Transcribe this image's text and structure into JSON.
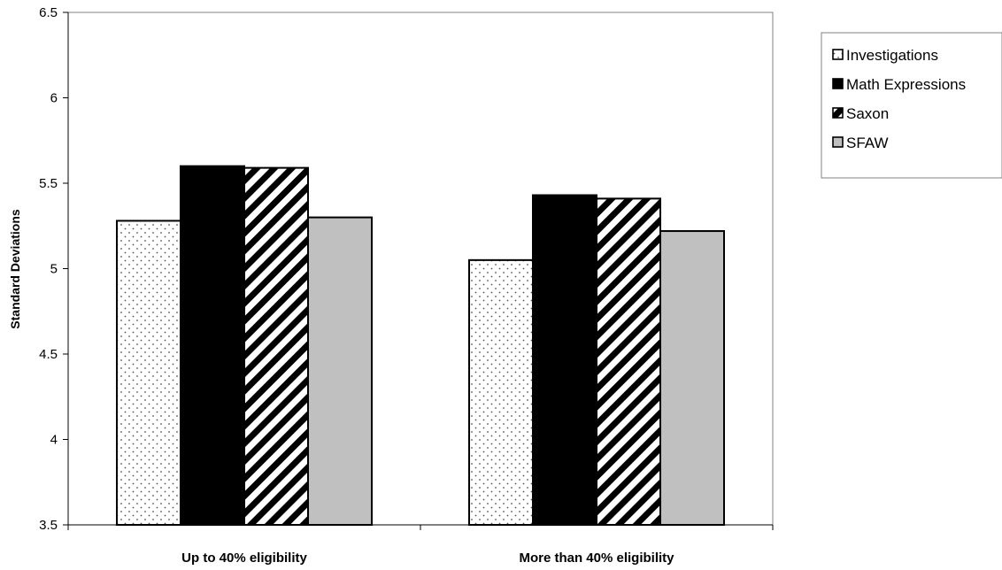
{
  "chart_data": {
    "type": "bar",
    "title": "",
    "xlabel": "",
    "ylabel": "Standard Deviations",
    "categories": [
      "Up to 40% eligibility",
      "More than 40% eligibility"
    ],
    "series": [
      {
        "name": "Investigations",
        "values": [
          5.28,
          5.05
        ],
        "pattern": "dots",
        "color": "#ffffff"
      },
      {
        "name": "Math Expressions",
        "values": [
          5.6,
          5.43
        ],
        "pattern": "solid",
        "color": "#000000"
      },
      {
        "name": "Saxon",
        "values": [
          5.59,
          5.41
        ],
        "pattern": "diagonal",
        "color": "#000000"
      },
      {
        "name": "SFAW",
        "values": [
          5.3,
          5.22
        ],
        "pattern": "solid",
        "color": "#c0c0c0"
      }
    ],
    "ylim": [
      3.5,
      6.5
    ],
    "yticks": [
      "3.5",
      "4",
      "4.5",
      "5",
      "5.5",
      "6",
      "6.5"
    ],
    "grid": false,
    "legend_position": "right"
  }
}
